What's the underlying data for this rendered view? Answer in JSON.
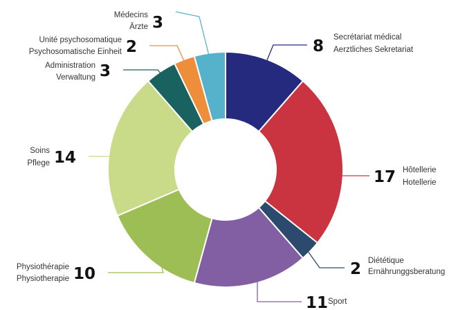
{
  "chart_data": {
    "type": "pie",
    "donut": true,
    "legend": "none",
    "slices": [
      {
        "value": 8,
        "fr": "Secrétariat médical",
        "de": "Aerztliches Sekretariat",
        "color": "#262a7e"
      },
      {
        "value": 17,
        "fr": "Hôtellerie",
        "de": "Hotellerie",
        "color": "#c93440"
      },
      {
        "value": 2,
        "fr": "Diététique",
        "de": "Ernährunggsberatung",
        "color": "#2c4a6d"
      },
      {
        "value": 11,
        "fr": "Sport",
        "de": "",
        "color": "#815fa2"
      },
      {
        "value": 10,
        "fr": "Physiothérapie",
        "de": "Physiotherapie",
        "color": "#9dbd55"
      },
      {
        "value": 14,
        "fr": "Soins",
        "de": "Pflege",
        "color": "#c9da88"
      },
      {
        "value": 3,
        "fr": "Administration",
        "de": "Verwaltung",
        "color": "#19625f"
      },
      {
        "value": 2,
        "fr": "Unité psychosomatique",
        "de": "Psychosomatische Einheit",
        "color": "#ee8e3a"
      },
      {
        "value": 3,
        "fr": "Médecins",
        "de": "Ärzte",
        "color": "#56b1cb"
      }
    ]
  }
}
